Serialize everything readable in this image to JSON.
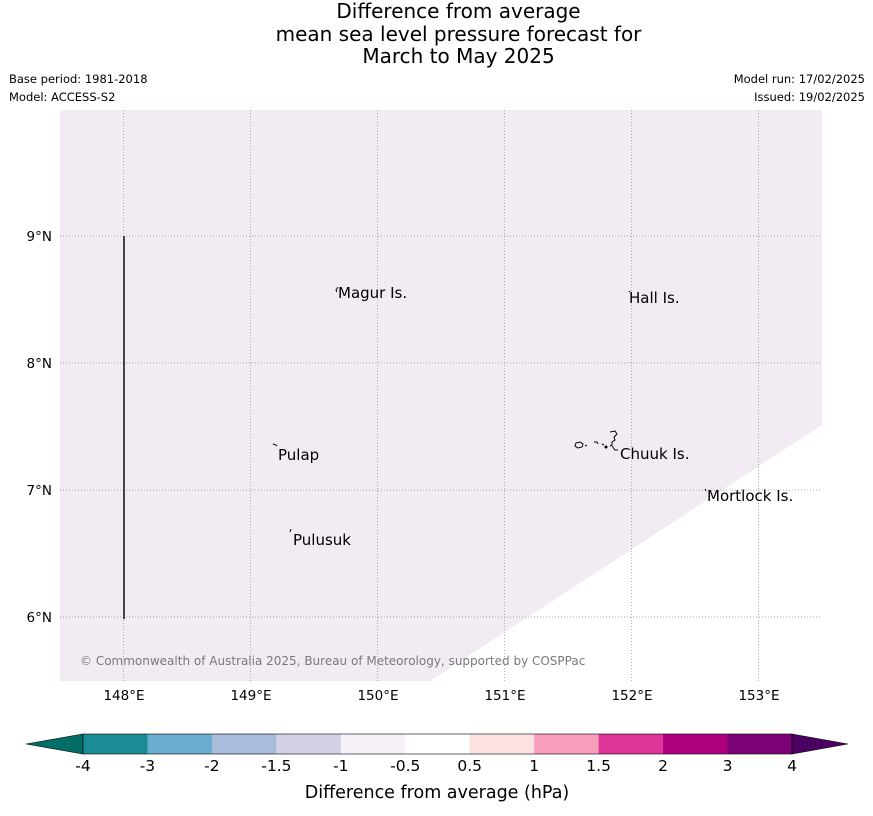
{
  "header": {
    "title_lines": [
      "Difference from average",
      "mean sea level pressure forecast for",
      "March to May 2025"
    ],
    "base_period": "Base period: 1981-2018",
    "model": "Model: ACCESS-S2",
    "model_run": "Model run: 17/02/2025",
    "issued": "Issued: 19/02/2025"
  },
  "map": {
    "background_color": "#f3ebf3",
    "lat_labels": [
      "9°N",
      "8°N",
      "7°N",
      "6°N"
    ],
    "lon_labels": [
      "148°E",
      "149°E",
      "150°E",
      "151°E",
      "152°E",
      "153°E"
    ],
    "places": [
      {
        "name": "Magur Is.",
        "lon": 149.67,
        "lat": 8.56
      },
      {
        "name": "Hall Is.",
        "lon": 151.97,
        "lat": 8.52
      },
      {
        "name": "Pulap",
        "lon": 149.18,
        "lat": 7.35
      },
      {
        "name": "Chuuk Is.",
        "lon": 151.85,
        "lat": 7.36
      },
      {
        "name": "Mortlock Is.",
        "lon": 152.6,
        "lat": 6.99
      },
      {
        "name": "Pulusuk",
        "lon": 149.3,
        "lat": 6.68
      }
    ],
    "copyright": "© Commonwealth of Australia 2025, Bureau of Meteorology, supported by COSPPac"
  },
  "colorbar": {
    "title": "Difference from average (hPa)",
    "labels": [
      "-4",
      "-3",
      "-2",
      "-1.5",
      "-1",
      "-0.5",
      "0.5",
      "1",
      "1.5",
      "2",
      "3",
      "4"
    ],
    "colors": [
      "#1a8c94",
      "#6aadd1",
      "#a8bcdb",
      "#d2d1e6",
      "#f6f0f8",
      "#ffffff",
      "#fde0e0",
      "#f99dbd",
      "#dd3598",
      "#ad017e",
      "#7b0174"
    ],
    "under_color": "#026c66",
    "over_color": "#4b0062"
  }
}
